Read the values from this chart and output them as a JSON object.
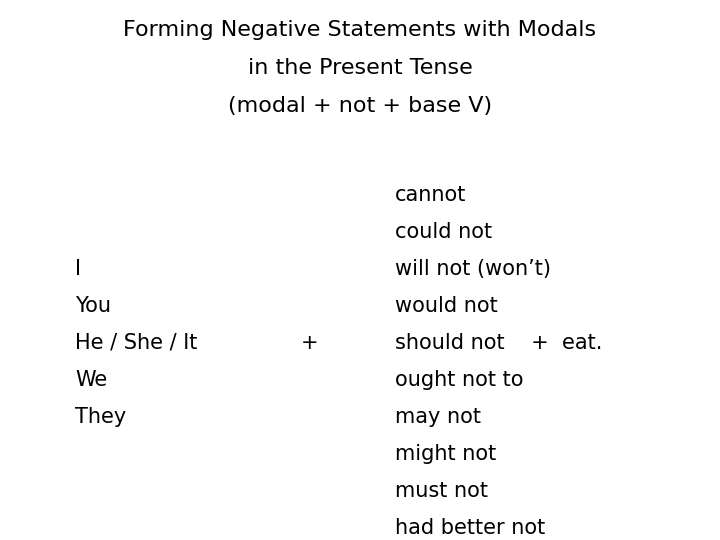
{
  "title_line1": "Forming Negative Statements with Modals",
  "title_line2": "in the Present Tense",
  "title_line3": "(modal + not + base V)",
  "subjects": [
    "I",
    "You",
    "He / She / It",
    "We",
    "They"
  ],
  "plus_sign": "+",
  "modals": [
    "cannot",
    "could not",
    "will not (won’t)",
    "would not",
    "should not    +  eat.",
    "ought not to",
    "may not",
    "might not",
    "must not",
    "had better not"
  ],
  "bg_color": "#ffffff",
  "text_color": "#000000",
  "title_fontsize": 16,
  "body_fontsize": 15,
  "font_family": "DejaVu Sans"
}
